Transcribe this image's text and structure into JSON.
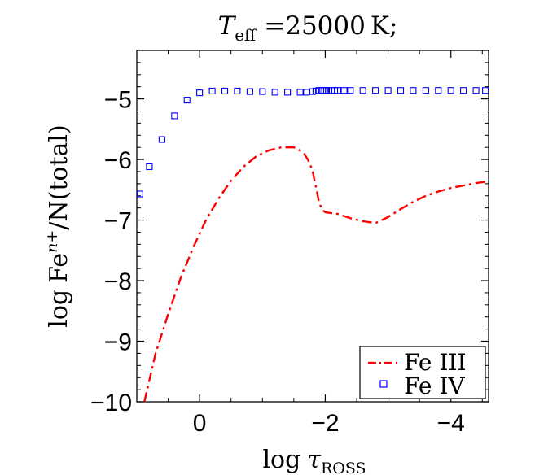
{
  "chart_data": {
    "type": "line",
    "title": {
      "symbol": "T",
      "subscript": "eff",
      "equals": "=",
      "value": "25000",
      "unit": "K",
      "end": ";"
    },
    "xlabel": {
      "prefix": "log",
      "symbol": "τ",
      "subscript": "ROSS"
    },
    "ylabel": {
      "prefix": "log",
      "element": "Fe",
      "superscript": "n+",
      "suffix": "/N(total)"
    },
    "xlim": [
      1,
      -4.6
    ],
    "ylim": [
      -10,
      -4.2
    ],
    "x_ticks": [
      0,
      -2,
      -4
    ],
    "x_tick_labels": [
      "0",
      "−2",
      "−4"
    ],
    "y_ticks": [
      -10,
      -9,
      -8,
      -7,
      -6,
      -5
    ],
    "y_tick_labels": [
      "−10",
      "−9",
      "−8",
      "−7",
      "−6",
      "−5"
    ],
    "legend_position": "bottom-right",
    "series": [
      {
        "name": "Fe III",
        "style": "dash-dot",
        "color": "#ff0000",
        "x": [
          0.88,
          0.7,
          0.5,
          0.3,
          0.1,
          -0.1,
          -0.3,
          -0.5,
          -0.7,
          -0.9,
          -1.1,
          -1.3,
          -1.5,
          -1.65,
          -1.75,
          -1.8,
          -1.85,
          -1.9,
          -1.95,
          -2.0,
          -2.05,
          -2.2,
          -2.4,
          -2.6,
          -2.8,
          -3.0,
          -3.2,
          -3.4,
          -3.6,
          -3.8,
          -4.0,
          -4.2,
          -4.4,
          -4.6
        ],
        "y": [
          -10.0,
          -9.2,
          -8.55,
          -7.95,
          -7.45,
          -7.0,
          -6.65,
          -6.35,
          -6.12,
          -5.95,
          -5.85,
          -5.8,
          -5.8,
          -5.88,
          -6.05,
          -6.2,
          -6.45,
          -6.7,
          -6.83,
          -6.87,
          -6.88,
          -6.9,
          -6.97,
          -7.02,
          -7.05,
          -6.95,
          -6.82,
          -6.7,
          -6.6,
          -6.53,
          -6.47,
          -6.43,
          -6.39,
          -6.36
        ]
      },
      {
        "name": "Fe IV",
        "style": "open-square",
        "color": "#0000ff",
        "x": [
          0.95,
          0.8,
          0.6,
          0.4,
          0.2,
          0.0,
          -0.2,
          -0.4,
          -0.6,
          -0.8,
          -1.0,
          -1.2,
          -1.4,
          -1.6,
          -1.7,
          -1.8,
          -1.85,
          -1.9,
          -1.93,
          -1.96,
          -1.99,
          -2.02,
          -2.05,
          -2.1,
          -2.15,
          -2.2,
          -2.3,
          -2.4,
          -2.6,
          -2.8,
          -3.0,
          -3.2,
          -3.4,
          -3.6,
          -3.8,
          -4.0,
          -4.2,
          -4.4,
          -4.55
        ],
        "y": [
          -6.57,
          -6.12,
          -5.67,
          -5.28,
          -5.02,
          -4.9,
          -4.87,
          -4.87,
          -4.87,
          -4.88,
          -4.88,
          -4.89,
          -4.89,
          -4.89,
          -4.89,
          -4.88,
          -4.87,
          -4.86,
          -4.86,
          -4.86,
          -4.86,
          -4.86,
          -4.86,
          -4.86,
          -4.86,
          -4.86,
          -4.86,
          -4.86,
          -4.86,
          -4.86,
          -4.86,
          -4.86,
          -4.86,
          -4.86,
          -4.86,
          -4.86,
          -4.86,
          -4.86,
          -4.86
        ]
      }
    ]
  }
}
